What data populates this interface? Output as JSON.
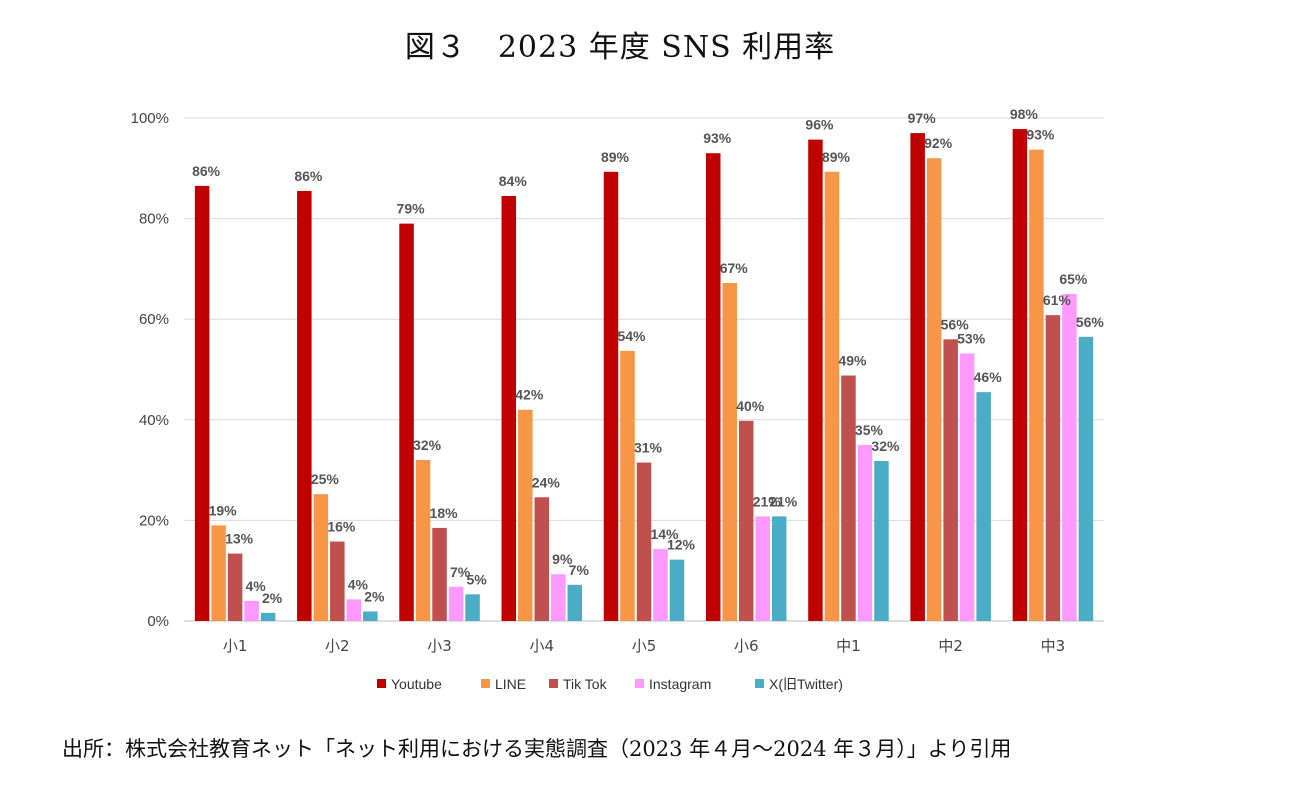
{
  "chart_data": {
    "type": "bar",
    "title": "図３　2023 年度 SNS 利用率",
    "categories": [
      "小1",
      "小2",
      "小3",
      "小4",
      "小5",
      "小6",
      "中1",
      "中2",
      "中3"
    ],
    "series": [
      {
        "name": "Youtube",
        "color": "#C00000",
        "values": [
          86,
          86,
          79,
          84,
          89,
          93,
          96,
          97,
          98
        ],
        "value_positions": [
          86.5,
          85.5,
          79,
          84.5,
          89.3,
          93,
          95.7,
          97,
          97.8
        ]
      },
      {
        "name": "LINE",
        "color": "#F79646",
        "values": [
          19,
          25,
          32,
          42,
          54,
          67,
          89,
          92,
          93
        ],
        "value_positions": [
          19,
          25.2,
          32,
          42,
          53.7,
          67.2,
          89.3,
          92,
          93.7
        ]
      },
      {
        "name": "Tik Tok",
        "color": "#C0504D",
        "values": [
          13,
          16,
          18,
          24,
          31,
          40,
          49,
          56,
          61
        ],
        "value_positions": [
          13.4,
          15.8,
          18.5,
          24.6,
          31.5,
          39.8,
          48.8,
          56,
          60.8
        ]
      },
      {
        "name": "Instagram",
        "color": "#FF99FF",
        "values": [
          4,
          4,
          7,
          9,
          14,
          21,
          35,
          53,
          65
        ],
        "value_positions": [
          4,
          4.3,
          6.8,
          9.3,
          14.3,
          20.8,
          35,
          53.2,
          65
        ]
      },
      {
        "name": "X(旧Twitter)",
        "color": "#4BACC6",
        "values": [
          2,
          2,
          5,
          7,
          12,
          21,
          32,
          46,
          56
        ],
        "value_positions": [
          1.6,
          1.9,
          5.3,
          7.2,
          12.2,
          20.8,
          31.8,
          45.5,
          56.5
        ]
      }
    ],
    "data_labels": [
      [
        "86%",
        "86%",
        "79%",
        "84%",
        "89%",
        "93%",
        "96%",
        "97%",
        "98%"
      ],
      [
        "19%",
        "25%",
        "32%",
        "42%",
        "54%",
        "67%",
        "89%",
        "92%",
        "93%"
      ],
      [
        "13%",
        "16%",
        "18%",
        "24%",
        "31%",
        "40%",
        "49%",
        "56%",
        "61%"
      ],
      [
        "4%",
        "4%",
        "7%",
        "9%",
        "14%",
        "21%",
        "35%",
        "53%",
        "65%"
      ],
      [
        "2%",
        "2%",
        "5%",
        "7%",
        "12%",
        "21%",
        "32%",
        "46%",
        "56%"
      ]
    ],
    "y_ticks": [
      {
        "value": 0,
        "label": "0%"
      },
      {
        "value": 20,
        "label": "20%"
      },
      {
        "value": 40,
        "label": "40%"
      },
      {
        "value": 60,
        "label": "60%"
      },
      {
        "value": 80,
        "label": "80%"
      },
      {
        "value": 100,
        "label": "100%"
      }
    ],
    "ylim": [
      0,
      100
    ],
    "xlabel": "",
    "ylabel": "",
    "grid": true,
    "legend_position": "bottom"
  },
  "source_note": "出所：株式会社教育ネット「ネット利用における実態調査（2023 年４月〜2024 年３月）」より引用"
}
